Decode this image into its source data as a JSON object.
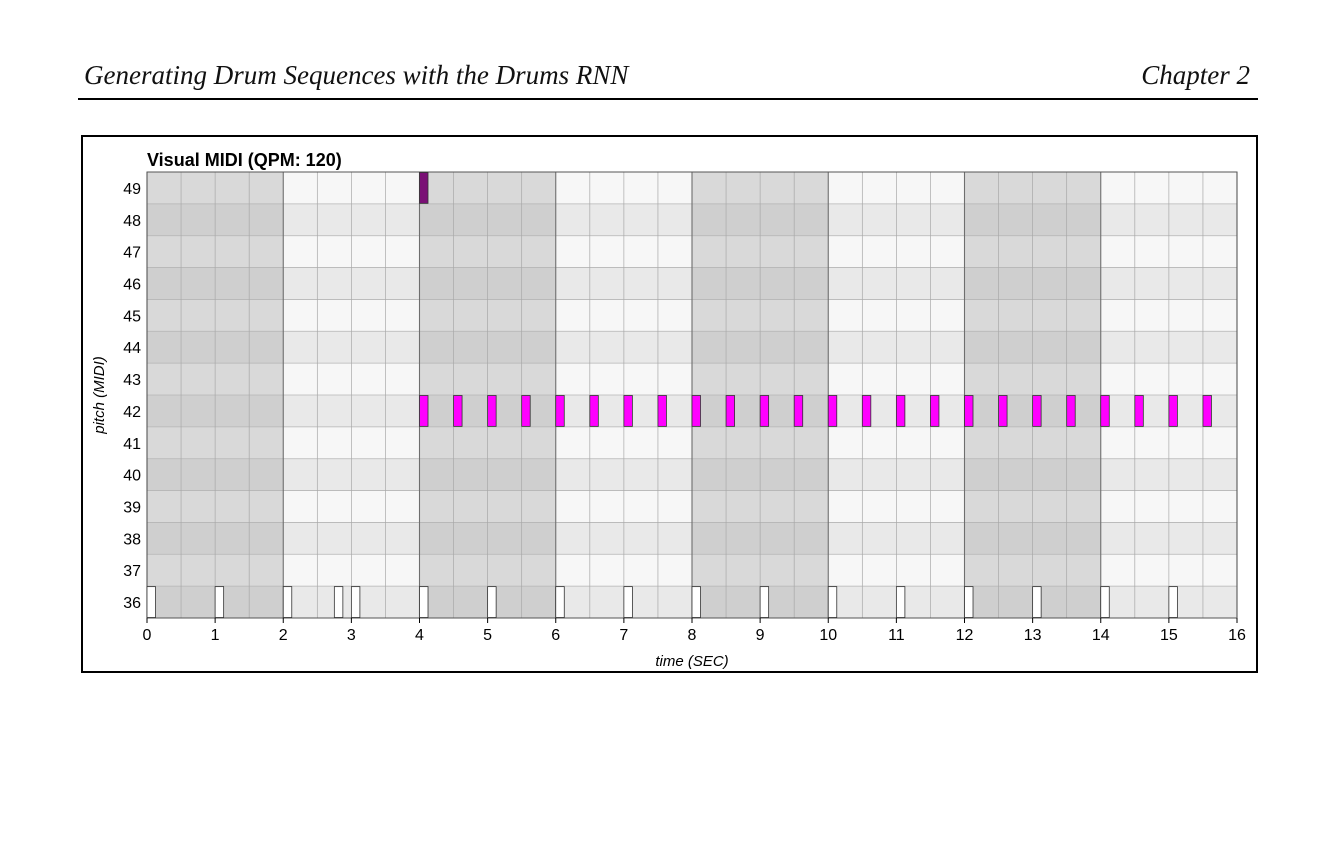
{
  "header": {
    "chapter_title": "Generating Drum Sequences with the Drums RNN",
    "chapter_number": "Chapter 2"
  },
  "chart_data": {
    "type": "piano-roll",
    "title": "Visual MIDI (QPM: 120)",
    "xlabel": "time (SEC)",
    "ylabel": "pitch (MIDI)",
    "xlim": [
      0,
      16
    ],
    "ylim": [
      36,
      49
    ],
    "x_ticks": [
      0,
      1,
      2,
      3,
      4,
      5,
      6,
      7,
      8,
      9,
      10,
      11,
      12,
      13,
      14,
      15,
      16
    ],
    "y_ticks": [
      49,
      48,
      47,
      46,
      45,
      44,
      43,
      42,
      41,
      40,
      39,
      38,
      37,
      36
    ],
    "grid": true,
    "shaded_bars": [
      [
        0,
        2
      ],
      [
        4,
        6
      ],
      [
        8,
        10
      ],
      [
        12,
        14
      ]
    ],
    "colors": {
      "pitch_49": "#7a1075",
      "pitch_42": "#ff00ff",
      "pitch_36": "#ffffff",
      "note_outline": "#333333",
      "bar_shade": "#dcdcdc",
      "light_shade": "#f4f4f4"
    },
    "series": [
      {
        "pitch": 49,
        "onsets": [
          4.0
        ]
      },
      {
        "pitch": 42,
        "onsets": [
          4.0,
          4.5,
          5.0,
          5.5,
          6.0,
          6.5,
          7.0,
          7.5,
          8.0,
          8.5,
          9.0,
          9.5,
          10.0,
          10.5,
          11.0,
          11.5,
          12.0,
          12.5,
          13.0,
          13.5,
          14.0,
          14.5,
          15.0,
          15.5
        ]
      },
      {
        "pitch": 36,
        "onsets": [
          0.0,
          1.0,
          2.0,
          2.75,
          3.0,
          4.0,
          5.0,
          6.0,
          7.0,
          8.0,
          9.0,
          10.0,
          11.0,
          12.0,
          13.0,
          14.0,
          15.0
        ]
      }
    ],
    "note_duration": 0.125
  }
}
